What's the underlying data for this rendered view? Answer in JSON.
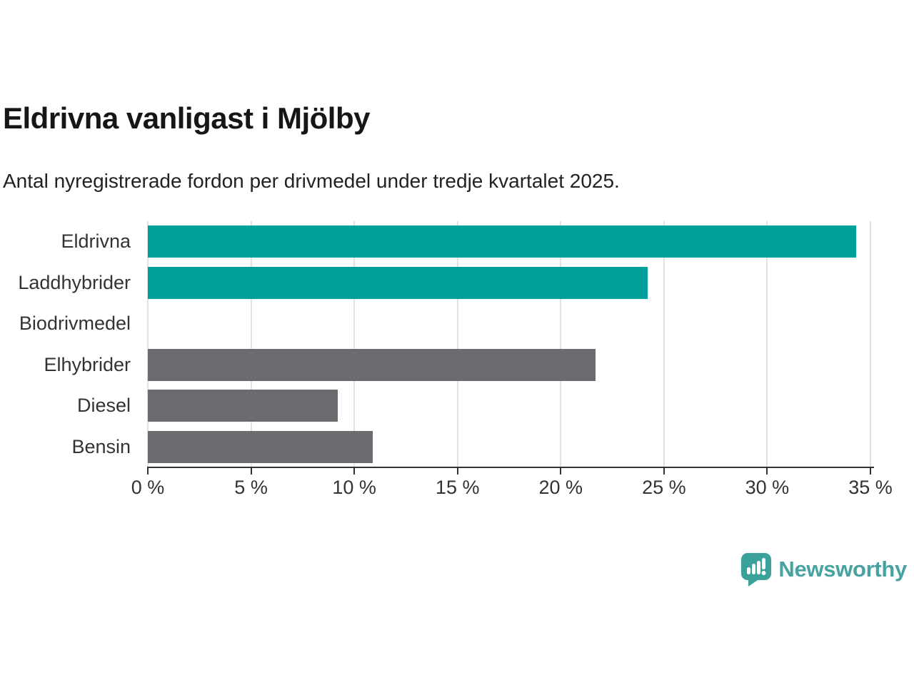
{
  "header": {
    "title": "Eldrivna vanligast i Mjölby",
    "subtitle": "Antal nyregistrerade fordon per drivmedel under tredje kvartalet 2025."
  },
  "chart_data": {
    "type": "bar",
    "orientation": "horizontal",
    "categories": [
      "Eldrivna",
      "Laddhybrider",
      "Biodrivmedel",
      "Elhybrider",
      "Diesel",
      "Bensin"
    ],
    "values": [
      34.3,
      24.2,
      0,
      21.7,
      9.2,
      10.9
    ],
    "unit": "%",
    "bar_colors": [
      "#00A09A",
      "#00A09A",
      "#00A09A",
      "#6B6B70",
      "#6B6B70",
      "#6B6B70"
    ],
    "highlight_color": "#00A09A",
    "default_color": "#6B6B70",
    "title": "Eldrivna vanligast i Mjölby",
    "subtitle": "Antal nyregistrerade fordon per drivmedel under tredje kvartalet 2025.",
    "xlabel": "",
    "ylabel": "",
    "xlim": [
      0,
      35
    ],
    "x_ticks": [
      0,
      5,
      10,
      15,
      20,
      25,
      30,
      35
    ],
    "tick_labels": [
      "0 %",
      "5 %",
      "10 %",
      "15 %",
      "20 %",
      "25 %",
      "30 %",
      "35 %"
    ],
    "grid": "vertical",
    "gridline_color": "#e2e2e2",
    "axis_color": "#333333",
    "legend": "none"
  },
  "footer": {
    "brand": "Newsworthy",
    "brand_color": "#46A3A0",
    "logo_icon": "newsworthy-speech-bubble-chart-icon",
    "logo_icon_color": "#3BA19B"
  }
}
